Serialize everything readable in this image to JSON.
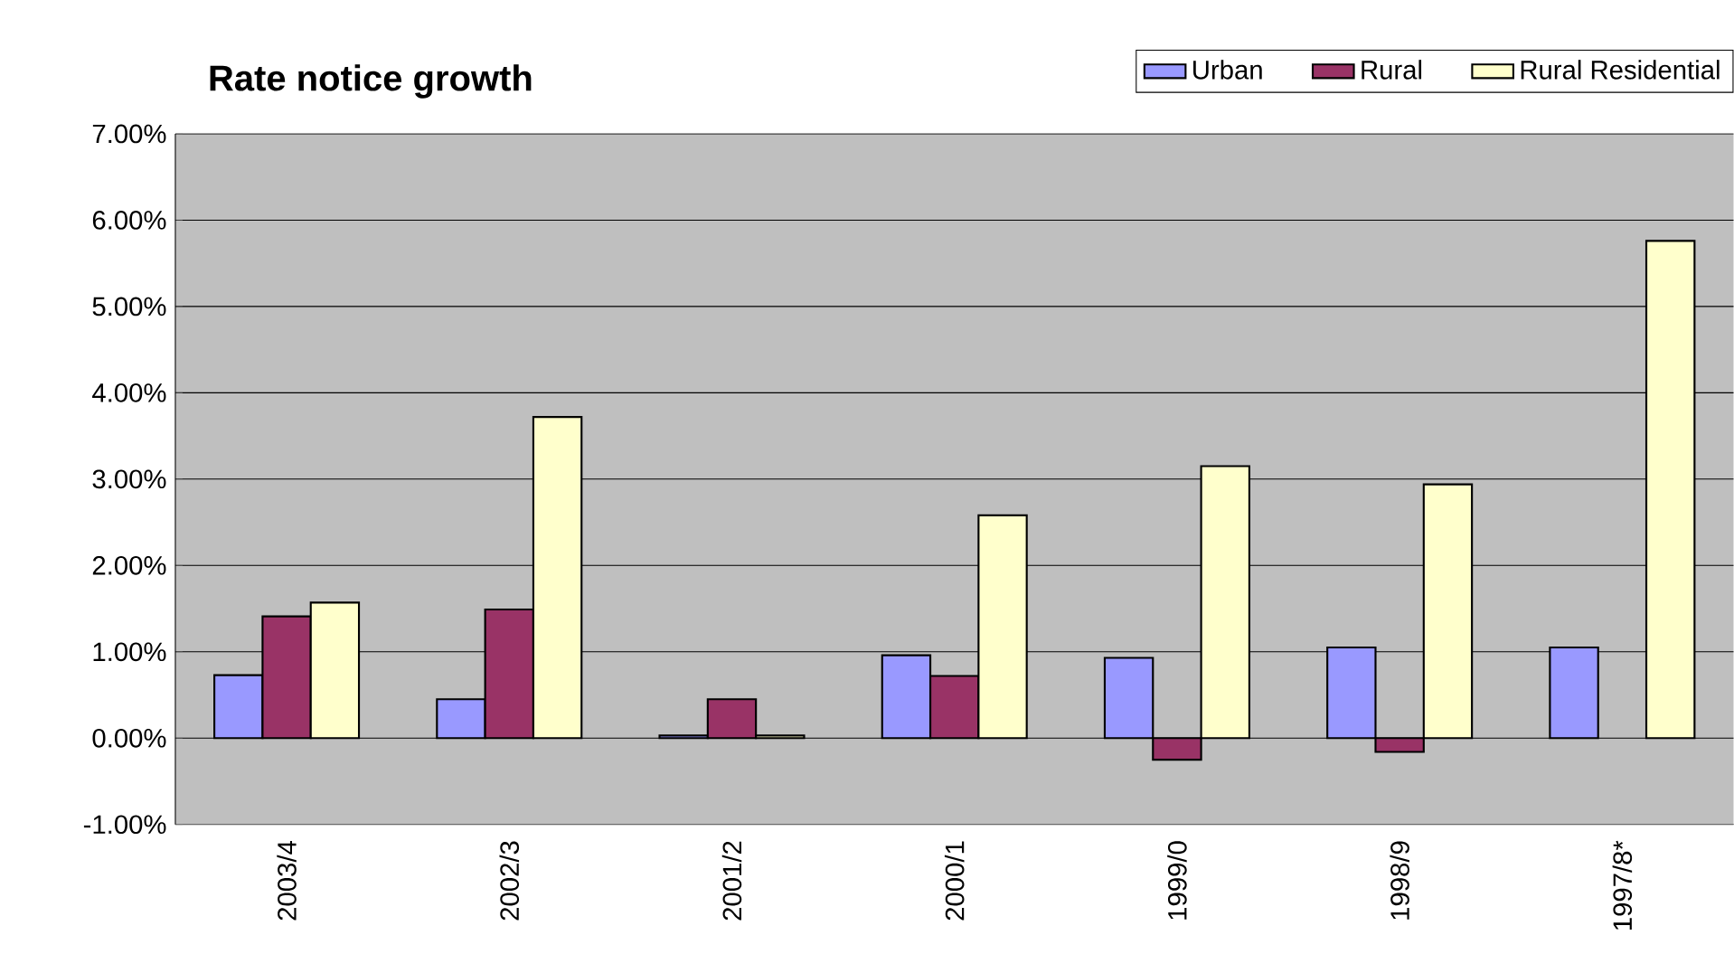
{
  "chart_data": {
    "type": "bar",
    "title": "Rate notice growth",
    "categories": [
      "2003/4",
      "2002/3",
      "2001/2",
      "2000/1",
      "1999/0",
      "1998/9",
      "1997/8*"
    ],
    "series": [
      {
        "name": "Urban",
        "color": "#9999ff",
        "values": [
          0.73,
          0.45,
          0.03,
          0.96,
          0.93,
          1.05,
          1.05
        ]
      },
      {
        "name": "Rural",
        "color": "#993366",
        "values": [
          1.41,
          1.49,
          0.45,
          0.72,
          -0.25,
          -0.16,
          null
        ]
      },
      {
        "name": "Rural Residential",
        "color": "#ffffcc",
        "values": [
          1.57,
          3.72,
          0.03,
          2.58,
          3.15,
          2.94,
          5.76
        ]
      }
    ],
    "ylim": [
      -1,
      7
    ],
    "yticks": [
      {
        "value": -1,
        "label": "-1.00%"
      },
      {
        "value": 0,
        "label": "0.00%"
      },
      {
        "value": 1,
        "label": "1.00%"
      },
      {
        "value": 2,
        "label": "2.00%"
      },
      {
        "value": 3,
        "label": "3.00%"
      },
      {
        "value": 4,
        "label": "4.00%"
      },
      {
        "value": 5,
        "label": "5.00%"
      },
      {
        "value": 6,
        "label": "6.00%"
      },
      {
        "value": 7,
        "label": "7.00%"
      }
    ],
    "grid": "y",
    "legend": "top right"
  }
}
